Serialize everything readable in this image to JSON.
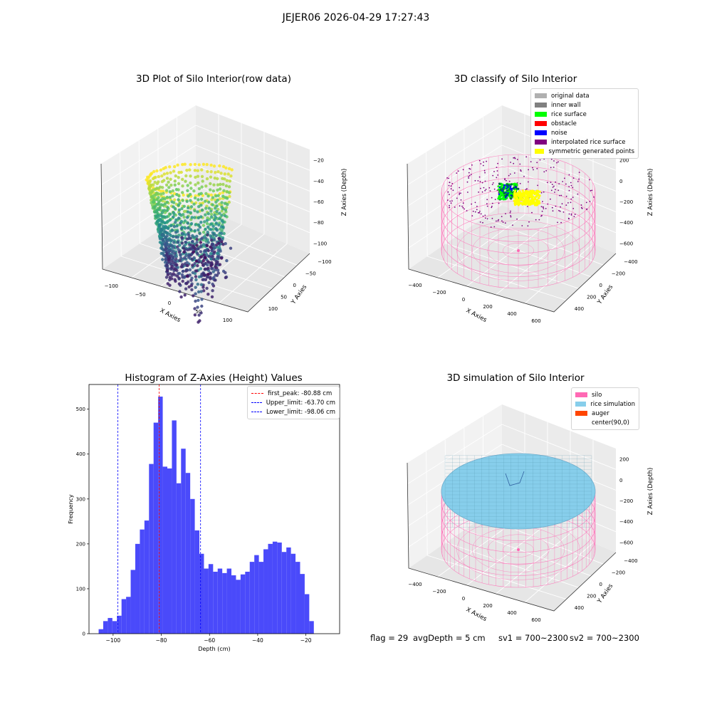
{
  "figure": {
    "suptitle": "JEJER06 2026-04-29 17:27:43",
    "status_bar": {
      "flag": "flag = 29",
      "avg_depth": "avgDepth = 5 cm",
      "sv1": "sv1 = 700~2300",
      "sv2": "sv2 = 700~2300"
    }
  },
  "chart_data": [
    {
      "type": "scatter",
      "projection": "3d",
      "title": "3D Plot of Silo Interior(row data)",
      "xlabel": "X Axies",
      "ylabel": "Y Axies",
      "zlabel": "Z Axies (Depth)",
      "xticks": [
        "−100",
        "−50",
        "0",
        "50",
        "100"
      ],
      "yticks": [
        "−100",
        "−50",
        "0",
        "50",
        "100"
      ],
      "zticks": [
        "−20",
        "−40",
        "−60",
        "−80",
        "−100"
      ],
      "colormap": "viridis",
      "xlim": [
        -110,
        110
      ],
      "ylim": [
        -110,
        110
      ],
      "zlim": [
        -110,
        -10
      ]
    },
    {
      "type": "scatter",
      "projection": "3d",
      "title": "3D classify of Silo Interior",
      "xlabel": "X Axies",
      "ylabel": "Y Axies",
      "zlabel": "Z Axies (Depth)",
      "xticks": [
        "−400",
        "−200",
        "0",
        "200",
        "400",
        "600"
      ],
      "yticks": [
        "−400",
        "−200",
        "0",
        "200",
        "400"
      ],
      "zticks": [
        "200",
        "0",
        "−200",
        "−400",
        "−600"
      ],
      "legend_position": "top-right",
      "legend": [
        {
          "label": "original data",
          "color": "#b0b0b0"
        },
        {
          "label": "inner wall",
          "color": "#808080"
        },
        {
          "label": "rice surface",
          "color": "#00ff00"
        },
        {
          "label": "obstacle",
          "color": "#ff0000"
        },
        {
          "label": "noise",
          "color": "#0000ff"
        },
        {
          "label": "interpolated rice surface",
          "color": "#800080"
        },
        {
          "label": "symmetric generated points",
          "color": "#ffff00"
        }
      ]
    },
    {
      "type": "bar",
      "title": "Histogram of Z-Axies (Height) Values",
      "xlabel": "Depth (cm)",
      "ylabel": "Frequency",
      "xlim": [
        -110,
        -6
      ],
      "ylim": [
        0,
        555
      ],
      "xticks": [
        -100,
        -80,
        -60,
        -40,
        -20
      ],
      "yticks": [
        0,
        100,
        200,
        300,
        400,
        500
      ],
      "bin_start": -106,
      "bin_width": 1.9,
      "counts": [
        10,
        28,
        35,
        28,
        40,
        77,
        82,
        142,
        200,
        232,
        252,
        378,
        470,
        528,
        372,
        368,
        475,
        335,
        412,
        358,
        300,
        230,
        178,
        145,
        155,
        138,
        145,
        135,
        145,
        130,
        120,
        132,
        138,
        160,
        175,
        160,
        188,
        200,
        205,
        203,
        182,
        192,
        178,
        160,
        133,
        88,
        28
      ],
      "bar_color": "#4a4afa",
      "lines": [
        {
          "label": "first_peak: -80.88 cm",
          "x": -80.88,
          "color": "#ff0000"
        },
        {
          "label": "Upper_limit: -63.70 cm",
          "x": -63.7,
          "color": "#0000ff"
        },
        {
          "label": "Lower_limit: -98.06 cm",
          "x": -98.06,
          "color": "#0000ff"
        }
      ],
      "legend_position": "top-right"
    },
    {
      "type": "surface",
      "projection": "3d",
      "title": "3D simulation of Silo Interior",
      "xlabel": "X Axies",
      "ylabel": "Y Axies",
      "zlabel": "Z Axies (Depth)",
      "xticks": [
        "−400",
        "−200",
        "0",
        "200",
        "400",
        "600"
      ],
      "yticks": [
        "−400",
        "−200",
        "0",
        "200",
        "400"
      ],
      "zticks": [
        "200",
        "0",
        "−200",
        "−400",
        "−600"
      ],
      "legend_position": "top-right",
      "legend": [
        {
          "label": "silo",
          "color": "#ff69b4"
        },
        {
          "label": "rice simulation",
          "color": "#87ceeb"
        },
        {
          "label": "auger",
          "color": "#ff4500"
        },
        {
          "label": "center(90,0)",
          "color": ""
        }
      ]
    }
  ]
}
